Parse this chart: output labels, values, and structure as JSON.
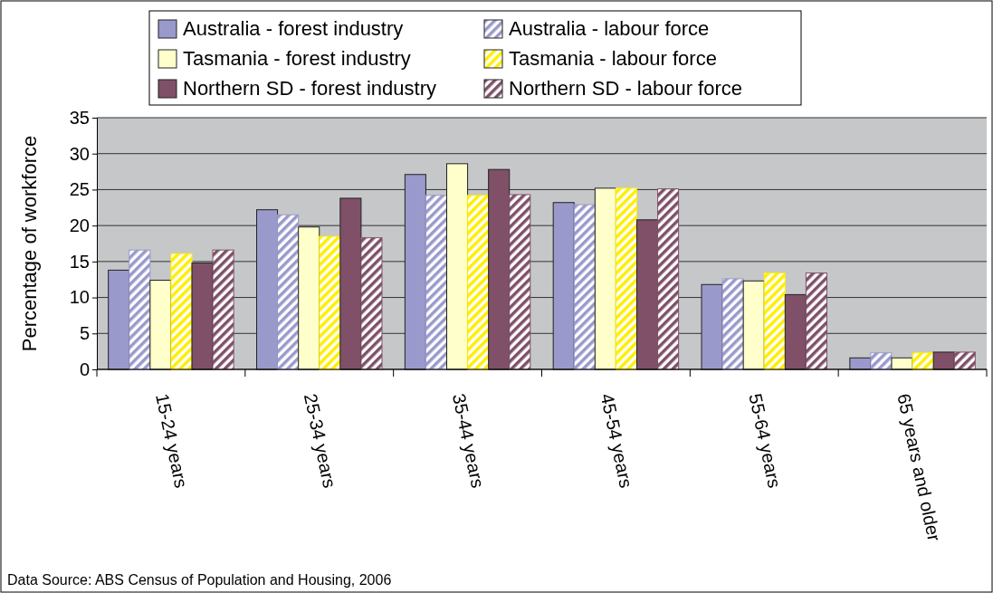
{
  "chart_data": {
    "type": "bar",
    "ylabel": "Percentage of workforce",
    "categories": [
      "15-24 years",
      "25-34 years",
      "35-44 years",
      "45-54 years",
      "55-64 years",
      "65 years and older"
    ],
    "series": [
      {
        "name": "Australia - forest industry",
        "color": "#9999cc",
        "values": [
          13.8,
          22.2,
          27.1,
          23.2,
          11.8,
          1.6
        ]
      },
      {
        "name": "Australia - labour force",
        "color": "#9999cc",
        "values": [
          16.6,
          21.5,
          24.2,
          22.9,
          12.6,
          2.3
        ]
      },
      {
        "name": "Tasmania - forest industry",
        "color": "#ffffcc",
        "values": [
          12.4,
          19.8,
          28.6,
          25.2,
          12.3,
          1.6
        ]
      },
      {
        "name": "Tasmania - labour force",
        "color": "#ffee00",
        "values": [
          16.1,
          18.5,
          24.2,
          25.2,
          13.4,
          2.3
        ]
      },
      {
        "name": "Northern SD - forest industry",
        "color": "#7f5068",
        "values": [
          14.8,
          23.8,
          27.8,
          20.8,
          10.4,
          2.4
        ]
      },
      {
        "name": "Northern SD - labour force",
        "color": "#7f5068",
        "values": [
          16.6,
          18.3,
          24.3,
          25.1,
          13.4,
          2.4
        ]
      }
    ],
    "ylim": [
      0,
      35
    ],
    "yticks": [
      0,
      5,
      10,
      15,
      20,
      25,
      30,
      35
    ],
    "grid": "y",
    "legend": "top",
    "annotations": [
      "Data Source: ABS Census of Population and Housing, 2006"
    ]
  }
}
